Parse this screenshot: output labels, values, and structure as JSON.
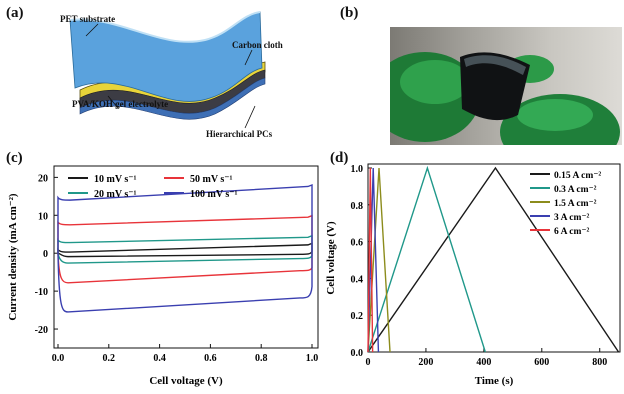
{
  "panels": {
    "a": {
      "label": "(a)",
      "annotations": {
        "pet": "PET substrate",
        "carbon": "Carbon cloth",
        "gel": "PVA/KOH gel electrolyte",
        "pcs": "Hierarchical PCs"
      }
    },
    "b": {
      "label": "(b)"
    },
    "c": {
      "label": "(c)"
    },
    "d": {
      "label": "(d)"
    }
  },
  "colors": {
    "black": "#1a1a1a",
    "red": "#e8343a",
    "teal": "#20988a",
    "blue": "#3a3fb0",
    "olive": "#8c8c1c"
  },
  "chart_data": [
    {
      "type": "line",
      "xlabel": "Cell voltage (V)",
      "ylabel": "Current density (mA cm⁻²)",
      "xlim": [
        0.0,
        1.0
      ],
      "ylim": [
        -25,
        23
      ],
      "xticks": [
        "0.0",
        "0.2",
        "0.4",
        "0.6",
        "0.8",
        "1.0"
      ],
      "yticks": [
        "20",
        "10",
        "0",
        "-10",
        "-20"
      ],
      "legend_placement": "top",
      "series": [
        {
          "name": "10 mV s⁻¹",
          "color": "#1a1a1a",
          "upper": [
            0.3,
            2.2
          ],
          "lower": [
            -0.9,
            -0.3
          ]
        },
        {
          "name": "50 mV s⁻¹",
          "color": "#e8343a",
          "upper": [
            7.5,
            9.5
          ],
          "lower": [
            -7.8,
            -4.6
          ]
        },
        {
          "name": "20 mV s⁻¹",
          "color": "#20988a",
          "upper": [
            2.8,
            4.2
          ],
          "lower": [
            -2.6,
            -1.4
          ]
        },
        {
          "name": "100 mV s⁻¹",
          "color": "#3a3fb0",
          "upper": [
            14.0,
            17.6
          ],
          "lower": [
            -15.5,
            -11.8
          ]
        }
      ]
    },
    {
      "type": "line",
      "xlabel": "Time (s)",
      "ylabel": "Cell voltage (V)",
      "xlim": [
        0,
        870
      ],
      "ylim": [
        0.0,
        1.0
      ],
      "xticks": [
        "0",
        "200",
        "400",
        "600",
        "800"
      ],
      "yticks": [
        "1.0",
        "0.8",
        "0.6",
        "0.4",
        "0.2",
        "0.0"
      ],
      "legend_placement": "top-right",
      "series": [
        {
          "name": "0.15 A cm⁻²",
          "color": "#1a1a1a",
          "x": [
            0,
            440,
            865
          ],
          "y": [
            0.0,
            1.0,
            0.0
          ]
        },
        {
          "name": "0.3 A cm⁻²",
          "color": "#20988a",
          "x": [
            0,
            205,
            405
          ],
          "y": [
            0.0,
            1.0,
            0.0
          ]
        },
        {
          "name": "1.5 A cm⁻²",
          "color": "#8c8c1c",
          "x": [
            0,
            38,
            76
          ],
          "y": [
            0.0,
            1.0,
            0.0
          ]
        },
        {
          "name": "3 A cm⁻²",
          "color": "#3a3fb0",
          "x": [
            0,
            18,
            36
          ],
          "y": [
            0.0,
            1.0,
            0.0
          ]
        },
        {
          "name": "6 A cm⁻²",
          "color": "#e8343a",
          "x": [
            0,
            8,
            16
          ],
          "y": [
            0.0,
            1.0,
            0.0
          ]
        }
      ]
    }
  ]
}
